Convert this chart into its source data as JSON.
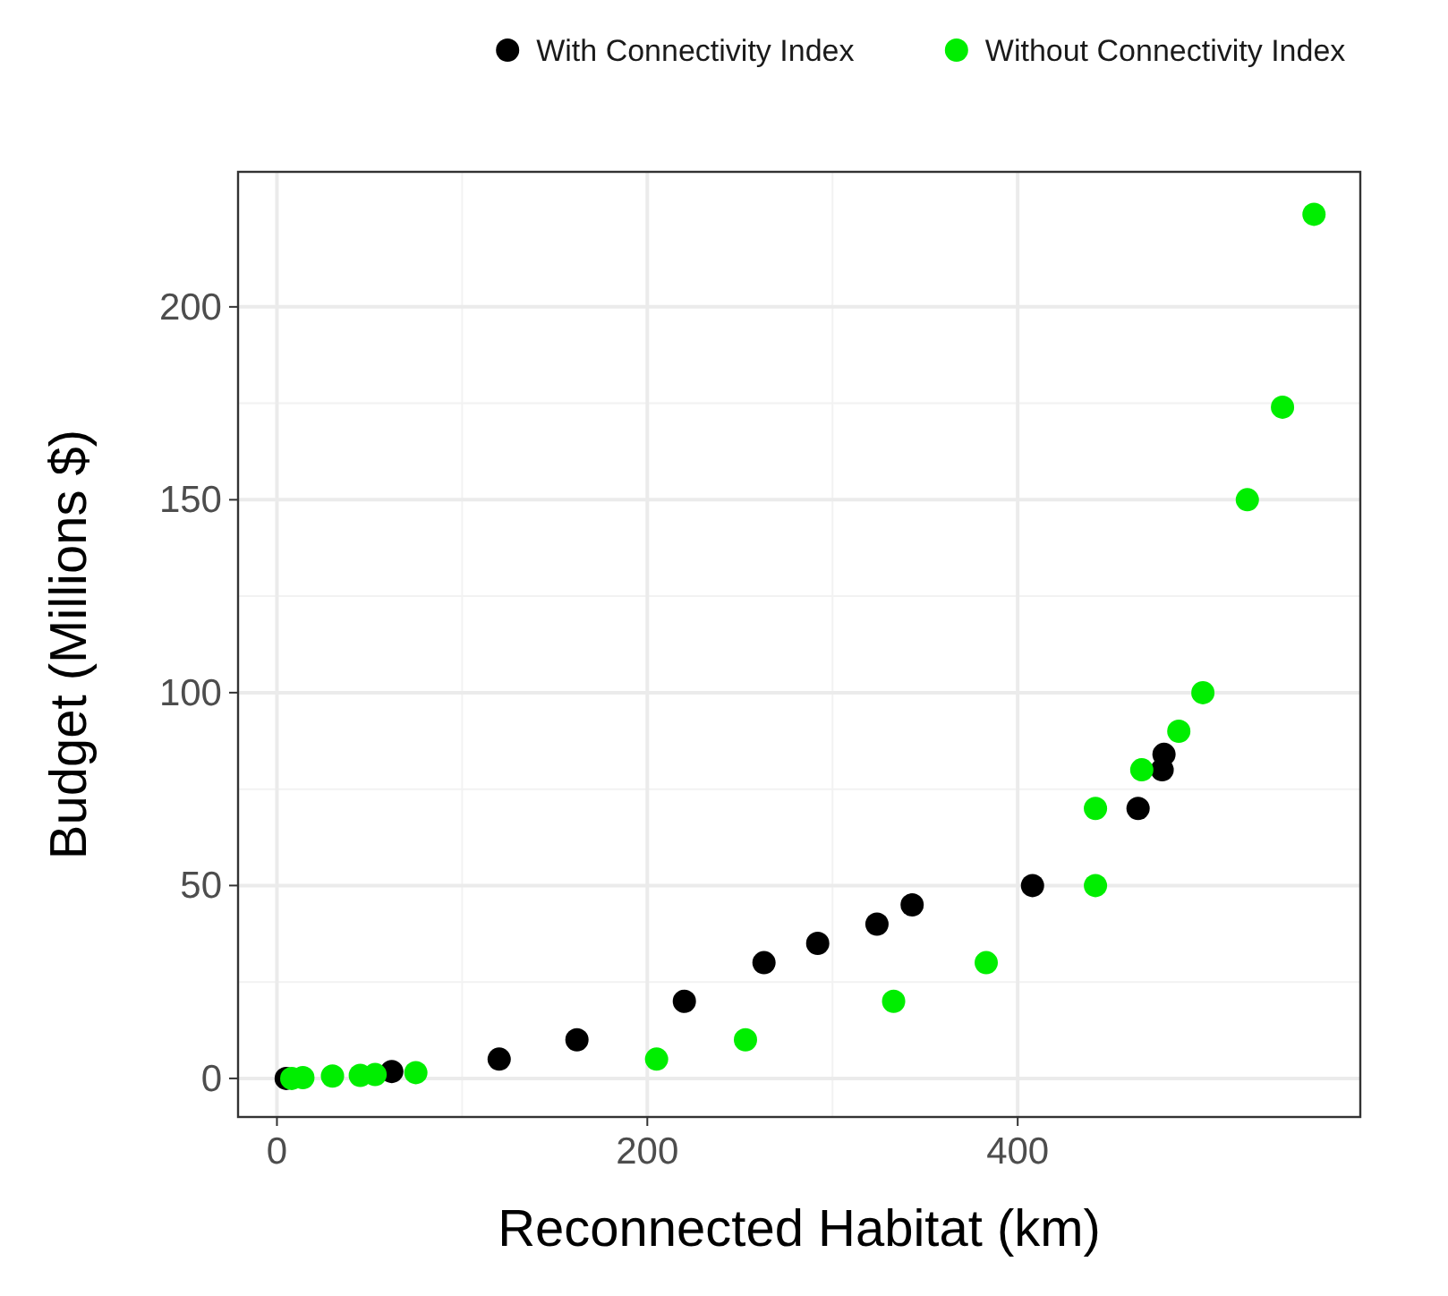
{
  "chart_data": {
    "type": "scatter",
    "xlabel": "Reconnected Habitat (km)",
    "ylabel": "Budget (Millions $)",
    "xlim": [
      -21,
      585
    ],
    "ylim": [
      -10,
      235
    ],
    "xticks": [
      0,
      200,
      400
    ],
    "yticks": [
      0,
      50,
      100,
      150,
      200
    ],
    "grid": true,
    "legend": "top",
    "marker": "circle",
    "series": [
      {
        "name": "With Connectivity Index",
        "color": "#000000",
        "x": [
          5,
          62,
          120,
          162,
          220,
          263,
          292,
          324,
          343,
          408,
          465,
          478,
          479
        ],
        "values": [
          0,
          1.8,
          5,
          10,
          20,
          30,
          35,
          40,
          45,
          50,
          70,
          80,
          84
        ]
      },
      {
        "name": "Without Connectivity Index",
        "color": "#00ee00",
        "x": [
          8,
          14,
          30,
          45,
          53,
          75,
          205,
          253,
          333,
          383,
          442,
          442,
          467,
          487,
          500,
          524,
          543,
          560
        ],
        "values": [
          0,
          0.2,
          0.6,
          0.8,
          1,
          1.5,
          5,
          10,
          20,
          30,
          50,
          70,
          80,
          90,
          100,
          150,
          174,
          224
        ]
      }
    ]
  }
}
